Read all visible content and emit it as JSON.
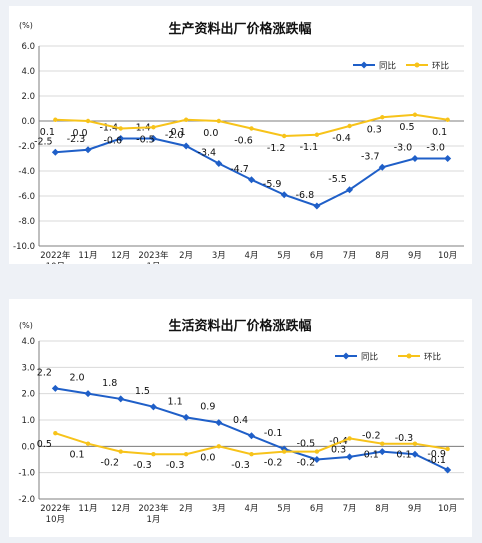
{
  "colors": {
    "yoy": "#1f5fc8",
    "mom": "#f7c31a",
    "axis": "#7f7f7f",
    "grid": "#d9d9d9"
  },
  "chart_data": [
    {
      "type": "line",
      "title": "生产资料出厂价格涨跌幅",
      "unit": "(%)",
      "ylim": [
        -10.0,
        6.0
      ],
      "yticks": [
        "6.0",
        "4.0",
        "2.0",
        "0.0",
        "-2.0",
        "-4.0",
        "-6.0",
        "-8.0",
        "-10.0"
      ],
      "categories": [
        [
          "2022年",
          "10月"
        ],
        [
          "11月"
        ],
        [
          "12月"
        ],
        [
          "2023年",
          "1月"
        ],
        [
          "2月"
        ],
        [
          "3月"
        ],
        [
          "4月"
        ],
        [
          "5月"
        ],
        [
          "6月"
        ],
        [
          "7月"
        ],
        [
          "8月"
        ],
        [
          "9月"
        ],
        [
          "10月"
        ]
      ],
      "legend_position": "top-right",
      "series": [
        {
          "name": "同比",
          "values": [
            -2.5,
            -2.3,
            -1.4,
            -1.4,
            -2.0,
            -3.4,
            -4.7,
            -5.9,
            -6.8,
            -5.5,
            -3.7,
            -3.0,
            -3.0
          ],
          "labels": [
            "-2.5",
            "-2.3",
            "-1.4",
            "-1.4",
            "-2.0",
            "-3.4",
            "-4.7",
            "-5.9",
            "-6.8",
            "-5.5",
            "-3.7",
            "-3.0",
            "-3.0"
          ]
        },
        {
          "name": "环比",
          "values": [
            0.1,
            0.0,
            -0.6,
            -0.5,
            0.1,
            0.0,
            -0.6,
            -1.2,
            -1.1,
            -0.4,
            0.3,
            0.5,
            0.1
          ],
          "labels": [
            "0.1",
            "0.0",
            "-0.6",
            "-0.5",
            "0.1",
            "0.0",
            "-0.6",
            "-1.2",
            "-1.1",
            "-0.4",
            "0.3",
            "0.5",
            "0.1"
          ]
        }
      ]
    },
    {
      "type": "line",
      "title": "生活资料出厂价格涨跌幅",
      "unit": "(%)",
      "ylim": [
        -2.0,
        4.0
      ],
      "yticks": [
        "4.0",
        "3.0",
        "2.0",
        "1.0",
        "0.0",
        "-1.0",
        "-2.0"
      ],
      "categories": [
        [
          "2022年",
          "10月"
        ],
        [
          "11月"
        ],
        [
          "12月"
        ],
        [
          "2023年",
          "1月"
        ],
        [
          "2月"
        ],
        [
          "3月"
        ],
        [
          "4月"
        ],
        [
          "5月"
        ],
        [
          "6月"
        ],
        [
          "7月"
        ],
        [
          "8月"
        ],
        [
          "9月"
        ],
        [
          "10月"
        ]
      ],
      "legend_position": "top-right",
      "series": [
        {
          "name": "同比",
          "values": [
            2.2,
            2.0,
            1.8,
            1.5,
            1.1,
            0.9,
            0.4,
            -0.1,
            -0.5,
            -0.4,
            -0.2,
            -0.3,
            -0.9
          ],
          "labels": [
            "2.2",
            "2.0",
            "1.8",
            "1.5",
            "1.1",
            "0.9",
            "0.4",
            "-0.1",
            "-0.5",
            "-0.4",
            "-0.2",
            "-0.3",
            "-0.9"
          ]
        },
        {
          "name": "环比",
          "values": [
            0.5,
            0.1,
            -0.2,
            -0.3,
            -0.3,
            0.0,
            -0.3,
            -0.2,
            -0.2,
            0.3,
            0.1,
            0.1,
            -0.1
          ],
          "labels": [
            "0.5",
            "0.1",
            "-0.2",
            "-0.3",
            "-0.3",
            "0.0",
            "-0.3",
            "-0.2",
            "-0.2",
            "0.3",
            "0.1",
            "0.1",
            "-0.1"
          ]
        }
      ]
    }
  ]
}
